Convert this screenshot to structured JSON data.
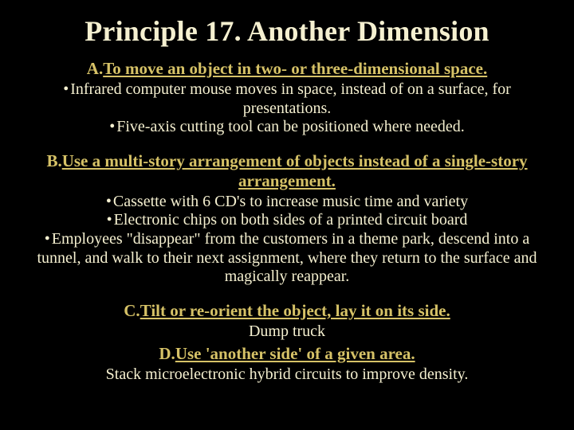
{
  "colors": {
    "background": "#000000",
    "title": "#f5f0d0",
    "subheading": "#d6c267",
    "body": "#f5f0d0"
  },
  "typography": {
    "family": "Times New Roman",
    "title_fontsize": 36,
    "sub_fontsize": 21,
    "body_fontsize": 20
  },
  "title": "Principle 17. Another Dimension",
  "sectionA": {
    "prefix": "A.  ",
    "heading": "To move an object in two- or three-dimensional space.",
    "bullets": [
      "Infrared computer mouse moves in space, instead of on a surface, for presentations.",
      "Five-axis cutting tool can be positioned where needed."
    ]
  },
  "sectionB": {
    "prefix": "B.  ",
    "heading": "Use a multi-story arrangement of objects instead of a single-story arrangement.",
    "bullets": [
      "Cassette with 6 CD's to increase music time and variety",
      "Electronic chips on both sides of a printed circuit board",
      "Employees \"disappear\" from the customers in a theme park, descend into a tunnel, and walk to their next assignment, where they return to the surface and magically reappear."
    ]
  },
  "sectionC": {
    "prefix": "C.  ",
    "heading": "Tilt or re-orient the object, lay it on its side.",
    "lines": [
      "Dump truck"
    ]
  },
  "sectionD": {
    "prefix": "D.  ",
    "heading": "Use 'another side' of a given area.",
    "lines": [
      "Stack microelectronic hybrid circuits to improve density."
    ]
  }
}
